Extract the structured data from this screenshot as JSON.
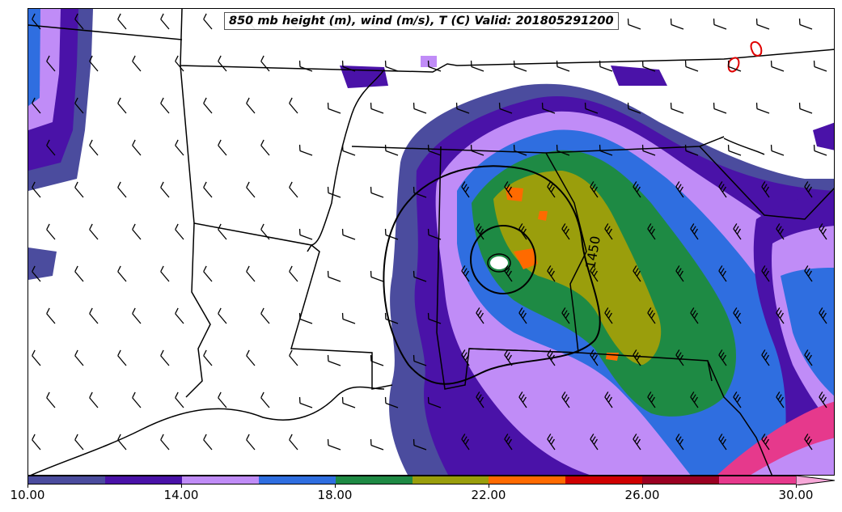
{
  "title": "850 mb height (m), wind (m/s), T (C) Valid: 201805291200",
  "contour_label": "1450",
  "colorbar": {
    "colors": [
      "#4b4c9e",
      "#4a12a8",
      "#c08cf7",
      "#2f6ee0",
      "#1e8a44",
      "#9a9e0c",
      "#ff6a00",
      "#cf0000",
      "#9a0022",
      "#e6398c",
      "#f7a8d8"
    ],
    "ticks": [
      {
        "label": "10.00",
        "value": 10
      },
      {
        "label": "14.00",
        "value": 14
      },
      {
        "label": "18.00",
        "value": 18
      },
      {
        "label": "22.00",
        "value": 22
      },
      {
        "label": "26.00",
        "value": 26
      },
      {
        "label": "30.00",
        "value": 30
      }
    ],
    "range": [
      10,
      31
    ],
    "extend": "max"
  }
}
